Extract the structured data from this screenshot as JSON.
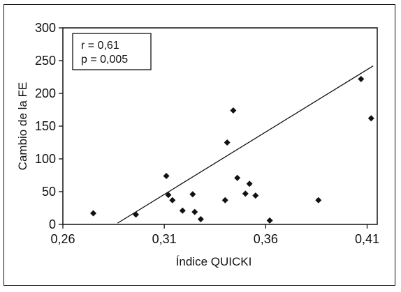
{
  "chart_data": {
    "type": "scatter",
    "title": "",
    "xlabel": "Índice QUICKI",
    "ylabel": "Cambio de la FE",
    "xlim": [
      0.26,
      0.415
    ],
    "ylim": [
      0,
      300
    ],
    "x_ticks": [
      0.26,
      0.31,
      0.36,
      0.41
    ],
    "x_tick_labels": [
      "0,26",
      "0,31",
      "0,36",
      "0,41"
    ],
    "y_ticks": [
      0,
      50,
      100,
      150,
      200,
      250,
      300
    ],
    "y_tick_labels": [
      "0",
      "50",
      "100",
      "150",
      "200",
      "250",
      "300"
    ],
    "grid": false,
    "legend": "none",
    "annotation": {
      "line1": "r = 0,61",
      "line2": "p = 0,005",
      "placement": "top-left"
    },
    "marker_color": "#111111",
    "series": [
      {
        "points": [
          {
            "x": 0.275,
            "y": 17
          },
          {
            "x": 0.296,
            "y": 15
          },
          {
            "x": 0.311,
            "y": 74
          },
          {
            "x": 0.312,
            "y": 45
          },
          {
            "x": 0.314,
            "y": 37
          },
          {
            "x": 0.319,
            "y": 21
          },
          {
            "x": 0.324,
            "y": 46
          },
          {
            "x": 0.325,
            "y": 19
          },
          {
            "x": 0.328,
            "y": 8
          },
          {
            "x": 0.34,
            "y": 37
          },
          {
            "x": 0.341,
            "y": 125
          },
          {
            "x": 0.344,
            "y": 174
          },
          {
            "x": 0.346,
            "y": 71
          },
          {
            "x": 0.35,
            "y": 47
          },
          {
            "x": 0.352,
            "y": 62
          },
          {
            "x": 0.355,
            "y": 44
          },
          {
            "x": 0.362,
            "y": 6
          },
          {
            "x": 0.386,
            "y": 37
          },
          {
            "x": 0.407,
            "y": 222
          },
          {
            "x": 0.412,
            "y": 162
          }
        ]
      }
    ],
    "regression_line": {
      "x": [
        0.287,
        0.413
      ],
      "y": [
        2,
        242
      ]
    }
  }
}
